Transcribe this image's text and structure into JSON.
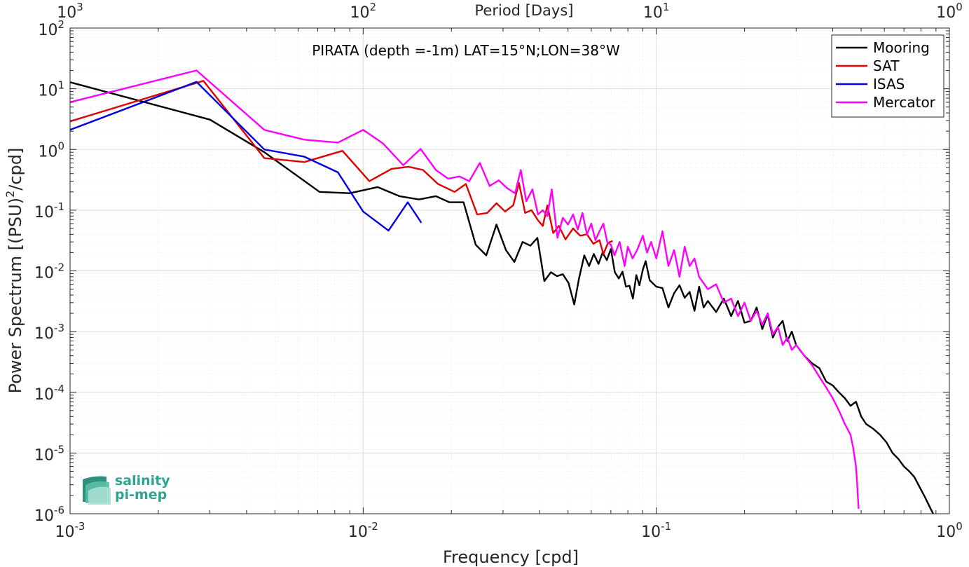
{
  "chart_data": {
    "type": "line",
    "title": "PIRATA (depth =-1m) LAT=15°N;LON=38°W",
    "xlabel": "Frequency [cpd]",
    "ylabel": "Power Spectrum [(PSU)",
    "ylabel_exp": "2",
    "ylabel_suffix": "/cpd]",
    "top_xlabel": "Period [Days]",
    "x_scale": "log",
    "y_scale": "log",
    "xlim": [
      0.001,
      1
    ],
    "ylim": [
      1e-06,
      100
    ],
    "grid": true,
    "legend_position": "top-right",
    "x_ticks": [
      {
        "base": "10",
        "exp": "-3",
        "value": 0.001
      },
      {
        "base": "10",
        "exp": "-2",
        "value": 0.01
      },
      {
        "base": "10",
        "exp": "-1",
        "value": 0.1
      },
      {
        "base": "10",
        "exp": "0",
        "value": 1
      }
    ],
    "top_ticks": [
      {
        "base": "10",
        "exp": "3",
        "value": 0.001
      },
      {
        "base": "10",
        "exp": "2",
        "value": 0.01
      },
      {
        "base": "10",
        "exp": "1",
        "value": 0.1
      },
      {
        "base": "10",
        "exp": "0",
        "value": 1
      }
    ],
    "y_ticks": [
      {
        "base": "10",
        "exp": "2",
        "value": 100
      },
      {
        "base": "10",
        "exp": "1",
        "value": 10
      },
      {
        "base": "10",
        "exp": "0",
        "value": 1
      },
      {
        "base": "10",
        "exp": "-1",
        "value": 0.1
      },
      {
        "base": "10",
        "exp": "-2",
        "value": 0.01
      },
      {
        "base": "10",
        "exp": "-3",
        "value": 0.001
      },
      {
        "base": "10",
        "exp": "-4",
        "value": 0.0001
      },
      {
        "base": "10",
        "exp": "-5",
        "value": 1e-05
      },
      {
        "base": "10",
        "exp": "-6",
        "value": 1e-06
      }
    ],
    "series": [
      {
        "name": "Mooring",
        "color": "#000000",
        "x": [
          0.001,
          0.003,
          0.0046,
          0.0071,
          0.009,
          0.0112,
          0.0133,
          0.0155,
          0.0177,
          0.0197,
          0.022,
          0.0242,
          0.0263,
          0.0285,
          0.0307,
          0.0328,
          0.035,
          0.0372,
          0.0393,
          0.0415,
          0.0437,
          0.0458,
          0.048,
          0.0502,
          0.0525,
          0.0545,
          0.0568,
          0.059,
          0.0612,
          0.0635,
          0.0656,
          0.0678,
          0.07,
          0.0722,
          0.0745,
          0.0767,
          0.0788,
          0.081,
          0.0832,
          0.0855,
          0.0876,
          0.09,
          0.092,
          0.095,
          0.1,
          0.105,
          0.11,
          0.115,
          0.12,
          0.125,
          0.13,
          0.135,
          0.14,
          0.145,
          0.15,
          0.16,
          0.17,
          0.18,
          0.19,
          0.2,
          0.21,
          0.22,
          0.23,
          0.24,
          0.25,
          0.26,
          0.27,
          0.28,
          0.29,
          0.3,
          0.32,
          0.34,
          0.36,
          0.38,
          0.4,
          0.42,
          0.44,
          0.46,
          0.48,
          0.5,
          0.52,
          0.55,
          0.58,
          0.61,
          0.64,
          0.67,
          0.7,
          0.73,
          0.76,
          0.79,
          0.82,
          0.85,
          0.88
        ],
        "y": [
          12.8,
          3.1,
          0.9,
          0.2,
          0.19,
          0.24,
          0.17,
          0.15,
          0.17,
          0.135,
          0.135,
          0.027,
          0.018,
          0.058,
          0.022,
          0.014,
          0.03,
          0.026,
          0.035,
          0.0068,
          0.0095,
          0.0082,
          0.0088,
          0.0063,
          0.0028,
          0.0075,
          0.018,
          0.012,
          0.019,
          0.013,
          0.02,
          0.015,
          0.023,
          0.0095,
          0.0075,
          0.0097,
          0.0055,
          0.0057,
          0.0035,
          0.0085,
          0.0058,
          0.0105,
          0.0145,
          0.007,
          0.0055,
          0.0052,
          0.0025,
          0.0043,
          0.0058,
          0.0036,
          0.0045,
          0.0022,
          0.0055,
          0.0025,
          0.0032,
          0.0021,
          0.0035,
          0.0018,
          0.0032,
          0.0014,
          0.0015,
          0.0025,
          0.0011,
          0.0019,
          0.0008,
          0.0012,
          0.0015,
          0.0007,
          0.001,
          0.0006,
          0.0004,
          0.0003,
          0.00025,
          0.00015,
          0.00013,
          0.0001,
          8e-05,
          6e-05,
          7e-05,
          4e-05,
          3e-05,
          2.5e-05,
          2e-05,
          1.5e-05,
          1e-05,
          8e-06,
          6e-06,
          5e-06,
          4e-06,
          2.8e-06,
          2e-06,
          1.4e-06,
          1e-06
        ]
      },
      {
        "name": "SAT",
        "color": "#e00000",
        "x": [
          0.001,
          0.00285,
          0.0046,
          0.0063,
          0.0085,
          0.0105,
          0.0125,
          0.0143,
          0.016,
          0.018,
          0.0205,
          0.0224,
          0.0245,
          0.0265,
          0.0285,
          0.0305,
          0.0325,
          0.034,
          0.0357,
          0.0375,
          0.0395,
          0.041,
          0.0425,
          0.0445,
          0.0465,
          0.049,
          0.052,
          0.055,
          0.058,
          0.061,
          0.064,
          0.066,
          0.0685,
          0.071
        ],
        "y": [
          2.9,
          13.5,
          0.72,
          0.62,
          0.95,
          0.3,
          0.48,
          0.52,
          0.46,
          0.27,
          0.2,
          0.27,
          0.085,
          0.09,
          0.13,
          0.095,
          0.12,
          0.28,
          0.09,
          0.1,
          0.068,
          0.055,
          0.12,
          0.042,
          0.055,
          0.033,
          0.05,
          0.038,
          0.04,
          0.028,
          0.032,
          0.019,
          0.029,
          0.031
        ]
      },
      {
        "name": "ISAS",
        "color": "#0000e0",
        "x": [
          0.001,
          0.0027,
          0.0046,
          0.0063,
          0.0082,
          0.01,
          0.0122,
          0.0142,
          0.0158
        ],
        "y": [
          2.1,
          13,
          1.0,
          0.76,
          0.42,
          0.095,
          0.046,
          0.135,
          0.062
        ]
      },
      {
        "name": "Mercator",
        "color": "#ff00ff",
        "x": [
          0.001,
          0.0027,
          0.0046,
          0.0063,
          0.0082,
          0.01,
          0.0117,
          0.0137,
          0.0157,
          0.0177,
          0.0195,
          0.0213,
          0.023,
          0.025,
          0.027,
          0.029,
          0.031,
          0.033,
          0.0345,
          0.036,
          0.0378,
          0.0395,
          0.041,
          0.0425,
          0.044,
          0.046,
          0.048,
          0.05,
          0.052,
          0.054,
          0.056,
          0.058,
          0.06,
          0.062,
          0.064,
          0.066,
          0.068,
          0.07,
          0.072,
          0.075,
          0.078,
          0.08,
          0.083,
          0.086,
          0.09,
          0.093,
          0.096,
          0.1,
          0.105,
          0.11,
          0.115,
          0.12,
          0.125,
          0.13,
          0.135,
          0.14,
          0.15,
          0.16,
          0.17,
          0.18,
          0.19,
          0.2,
          0.21,
          0.22,
          0.23,
          0.24,
          0.25,
          0.26,
          0.27,
          0.28,
          0.29,
          0.3,
          0.32,
          0.34,
          0.36,
          0.38,
          0.4,
          0.42,
          0.44,
          0.46,
          0.47,
          0.48,
          0.485,
          0.49
        ],
        "y": [
          6.0,
          20,
          2.1,
          1.45,
          1.3,
          2.1,
          1.25,
          0.55,
          1.02,
          0.46,
          0.33,
          0.36,
          0.3,
          0.6,
          0.25,
          0.31,
          0.23,
          0.19,
          0.46,
          0.14,
          0.22,
          0.085,
          0.1,
          0.08,
          0.22,
          0.035,
          0.075,
          0.058,
          0.085,
          0.048,
          0.09,
          0.04,
          0.06,
          0.032,
          0.045,
          0.06,
          0.03,
          0.027,
          0.018,
          0.03,
          0.012,
          0.025,
          0.016,
          0.022,
          0.038,
          0.02,
          0.03,
          0.016,
          0.045,
          0.012,
          0.022,
          0.008,
          0.025,
          0.012,
          0.016,
          0.008,
          0.005,
          0.006,
          0.003,
          0.0035,
          0.0018,
          0.003,
          0.0015,
          0.0022,
          0.0013,
          0.002,
          0.0009,
          0.0012,
          0.0006,
          0.0008,
          0.0005,
          0.0006,
          0.0004,
          0.00028,
          0.00018,
          0.00012,
          8e-05,
          5e-05,
          3e-05,
          2e-05,
          1.2e-05,
          6e-06,
          3e-06,
          1.2e-06
        ]
      }
    ]
  },
  "logo": {
    "line1": "salinity",
    "line2": "pi-mep"
  }
}
